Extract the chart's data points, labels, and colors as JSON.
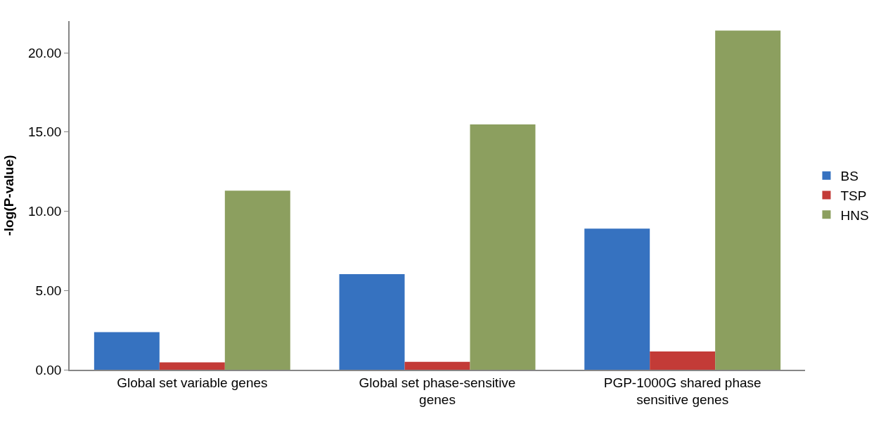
{
  "chart_data": {
    "type": "bar",
    "ylabel": "-log(P-value)",
    "categories": [
      "Global set variable genes",
      "Global set phase-sensitive genes",
      "PGP-1000G shared phase sensitive genes"
    ],
    "series": [
      {
        "name": "BS",
        "color": "#3672c0",
        "values": [
          2.37,
          6.03,
          8.9
        ]
      },
      {
        "name": "TSP",
        "color": "#c33b37",
        "values": [
          0.47,
          0.5,
          1.15
        ]
      },
      {
        "name": "HNS",
        "color": "#8c9f5f",
        "values": [
          11.3,
          15.48,
          21.4
        ]
      }
    ],
    "ylim": [
      0,
      22
    ],
    "yticks": [
      {
        "value": 0,
        "label": "0.00"
      },
      {
        "value": 5,
        "label": "5.00"
      },
      {
        "value": 10,
        "label": "10.00"
      },
      {
        "value": 15,
        "label": "15.00"
      },
      {
        "value": 20,
        "label": "20.00"
      }
    ],
    "legend": "right"
  }
}
